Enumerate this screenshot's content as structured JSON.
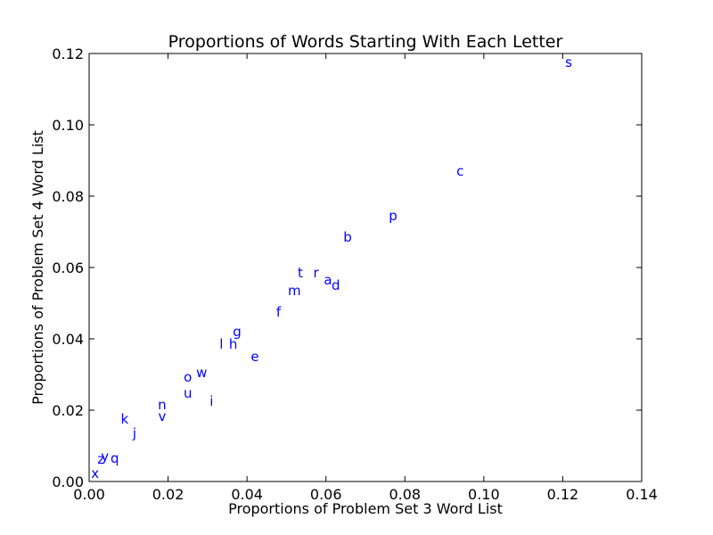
{
  "chart_data": {
    "type": "scatter",
    "title": "Proportions of Words Starting With Each Letter",
    "xlabel": "Proportions of Problem Set 3 Word List",
    "ylabel": "Proportions of Problem Set 4 Word List",
    "xlim": [
      0,
      0.14
    ],
    "ylim": [
      0,
      0.12
    ],
    "xticks": [
      "0.00",
      "0.02",
      "0.04",
      "0.06",
      "0.08",
      "0.10",
      "0.12",
      "0.14"
    ],
    "yticks": [
      "0.00",
      "0.02",
      "0.04",
      "0.06",
      "0.08",
      "0.10",
      "0.12"
    ],
    "x_tick_values": [
      0,
      0.02,
      0.04,
      0.06,
      0.08,
      0.1,
      0.12,
      0.14
    ],
    "y_tick_values": [
      0,
      0.02,
      0.04,
      0.06,
      0.08,
      0.1,
      0.12
    ],
    "grid": false,
    "label_color": "#0000ff",
    "points": [
      {
        "label": "s",
        "x": 0.1215,
        "y": 0.1175
      },
      {
        "label": "c",
        "x": 0.094,
        "y": 0.087
      },
      {
        "label": "p",
        "x": 0.077,
        "y": 0.0745
      },
      {
        "label": "b",
        "x": 0.0655,
        "y": 0.0685
      },
      {
        "label": "t",
        "x": 0.0535,
        "y": 0.0585
      },
      {
        "label": "r",
        "x": 0.0575,
        "y": 0.0585
      },
      {
        "label": "a",
        "x": 0.0605,
        "y": 0.0565
      },
      {
        "label": "d",
        "x": 0.0625,
        "y": 0.055
      },
      {
        "label": "m",
        "x": 0.052,
        "y": 0.0535
      },
      {
        "label": "f",
        "x": 0.048,
        "y": 0.0475
      },
      {
        "label": "g",
        "x": 0.0375,
        "y": 0.042
      },
      {
        "label": "l",
        "x": 0.0335,
        "y": 0.0385
      },
      {
        "label": "h",
        "x": 0.0365,
        "y": 0.0385
      },
      {
        "label": "e",
        "x": 0.042,
        "y": 0.035
      },
      {
        "label": "w",
        "x": 0.0285,
        "y": 0.0305
      },
      {
        "label": "o",
        "x": 0.025,
        "y": 0.0293
      },
      {
        "label": "u",
        "x": 0.025,
        "y": 0.0248
      },
      {
        "label": "i",
        "x": 0.031,
        "y": 0.0225
      },
      {
        "label": "n",
        "x": 0.0185,
        "y": 0.0215
      },
      {
        "label": "v",
        "x": 0.0185,
        "y": 0.0183
      },
      {
        "label": "k",
        "x": 0.009,
        "y": 0.0175
      },
      {
        "label": "j",
        "x": 0.0115,
        "y": 0.0135
      },
      {
        "label": "y",
        "x": 0.004,
        "y": 0.007
      },
      {
        "label": "q",
        "x": 0.0065,
        "y": 0.0065
      },
      {
        "label": "z",
        "x": 0.003,
        "y": 0.0063
      },
      {
        "label": "x",
        "x": 0.0015,
        "y": 0.0022
      }
    ]
  }
}
